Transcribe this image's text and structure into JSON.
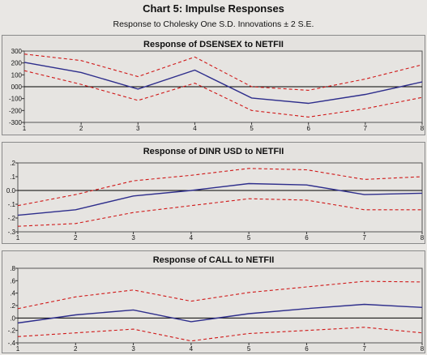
{
  "figure": {
    "title": "Chart 5: Impulse Responses",
    "subtitle": "Response to Cholesky One S.D. Innovations ± 2 S.E."
  },
  "colors": {
    "response": "#2e2e8c",
    "band": "#d01818",
    "zero": "#000000"
  },
  "chart_data": [
    {
      "type": "line",
      "title": "Response of DSENSEX to NETFII",
      "x": [
        1,
        2,
        3,
        4,
        5,
        6,
        7,
        8
      ],
      "xticks": [
        "1",
        "2",
        "3",
        "4",
        "5",
        "6",
        "7",
        "8"
      ],
      "ylim": [
        -300,
        300
      ],
      "yticks": [
        300,
        200,
        100,
        0,
        -100,
        -200,
        -300
      ],
      "ytick_labels": [
        "300",
        "200",
        "100",
        "000",
        "-100",
        "-200",
        "-300"
      ],
      "zero_line": true,
      "series": [
        {
          "role": "response",
          "values": [
            205,
            120,
            -20,
            140,
            -95,
            -140,
            -65,
            40
          ]
        },
        {
          "role": "upper",
          "values": [
            275,
            220,
            85,
            250,
            0,
            -30,
            65,
            185
          ]
        },
        {
          "role": "lower",
          "values": [
            135,
            20,
            -115,
            30,
            -200,
            -255,
            -185,
            -90
          ]
        }
      ]
    },
    {
      "type": "line",
      "title": "Response of DINR USD to NETFII",
      "x": [
        1,
        2,
        3,
        4,
        5,
        6,
        7,
        8
      ],
      "xticks": [
        "1",
        "2",
        "3",
        "4",
        "5",
        "6",
        "7",
        "8"
      ],
      "ylim": [
        -0.3,
        0.2
      ],
      "yticks": [
        0.2,
        0.1,
        0.0,
        -0.1,
        -0.2,
        -0.3
      ],
      "ytick_labels": [
        ".2",
        ".1",
        "0.0",
        "-.1",
        "-.2",
        "-.3"
      ],
      "zero_line": true,
      "series": [
        {
          "role": "response",
          "values": [
            -0.18,
            -0.14,
            -0.04,
            0.0,
            0.05,
            0.04,
            -0.03,
            -0.02
          ]
        },
        {
          "role": "upper",
          "values": [
            -0.11,
            -0.03,
            0.07,
            0.11,
            0.16,
            0.15,
            0.08,
            0.1
          ]
        },
        {
          "role": "lower",
          "values": [
            -0.26,
            -0.24,
            -0.16,
            -0.11,
            -0.06,
            -0.07,
            -0.14,
            -0.14
          ]
        }
      ]
    },
    {
      "type": "line",
      "title": "Response of CALL to NETFII",
      "x": [
        1,
        2,
        3,
        4,
        5,
        6,
        7,
        8
      ],
      "xticks": [
        "1",
        "2",
        "3",
        "4",
        "5",
        "6",
        "7",
        "8"
      ],
      "ylim": [
        -0.4,
        0.8
      ],
      "yticks": [
        0.8,
        0.6,
        0.4,
        0.2,
        0.0,
        -0.2,
        -0.4
      ],
      "ytick_labels": [
        ".8",
        ".6",
        ".4",
        ".2",
        ".0",
        "-.2",
        "-.4"
      ],
      "zero_line": true,
      "series": [
        {
          "role": "response",
          "values": [
            -0.08,
            0.05,
            0.13,
            -0.06,
            0.07,
            0.15,
            0.22,
            0.17
          ]
        },
        {
          "role": "upper",
          "values": [
            0.15,
            0.34,
            0.45,
            0.27,
            0.41,
            0.5,
            0.59,
            0.58
          ]
        },
        {
          "role": "lower",
          "values": [
            -0.3,
            -0.24,
            -0.18,
            -0.37,
            -0.25,
            -0.2,
            -0.15,
            -0.24
          ]
        }
      ]
    }
  ]
}
